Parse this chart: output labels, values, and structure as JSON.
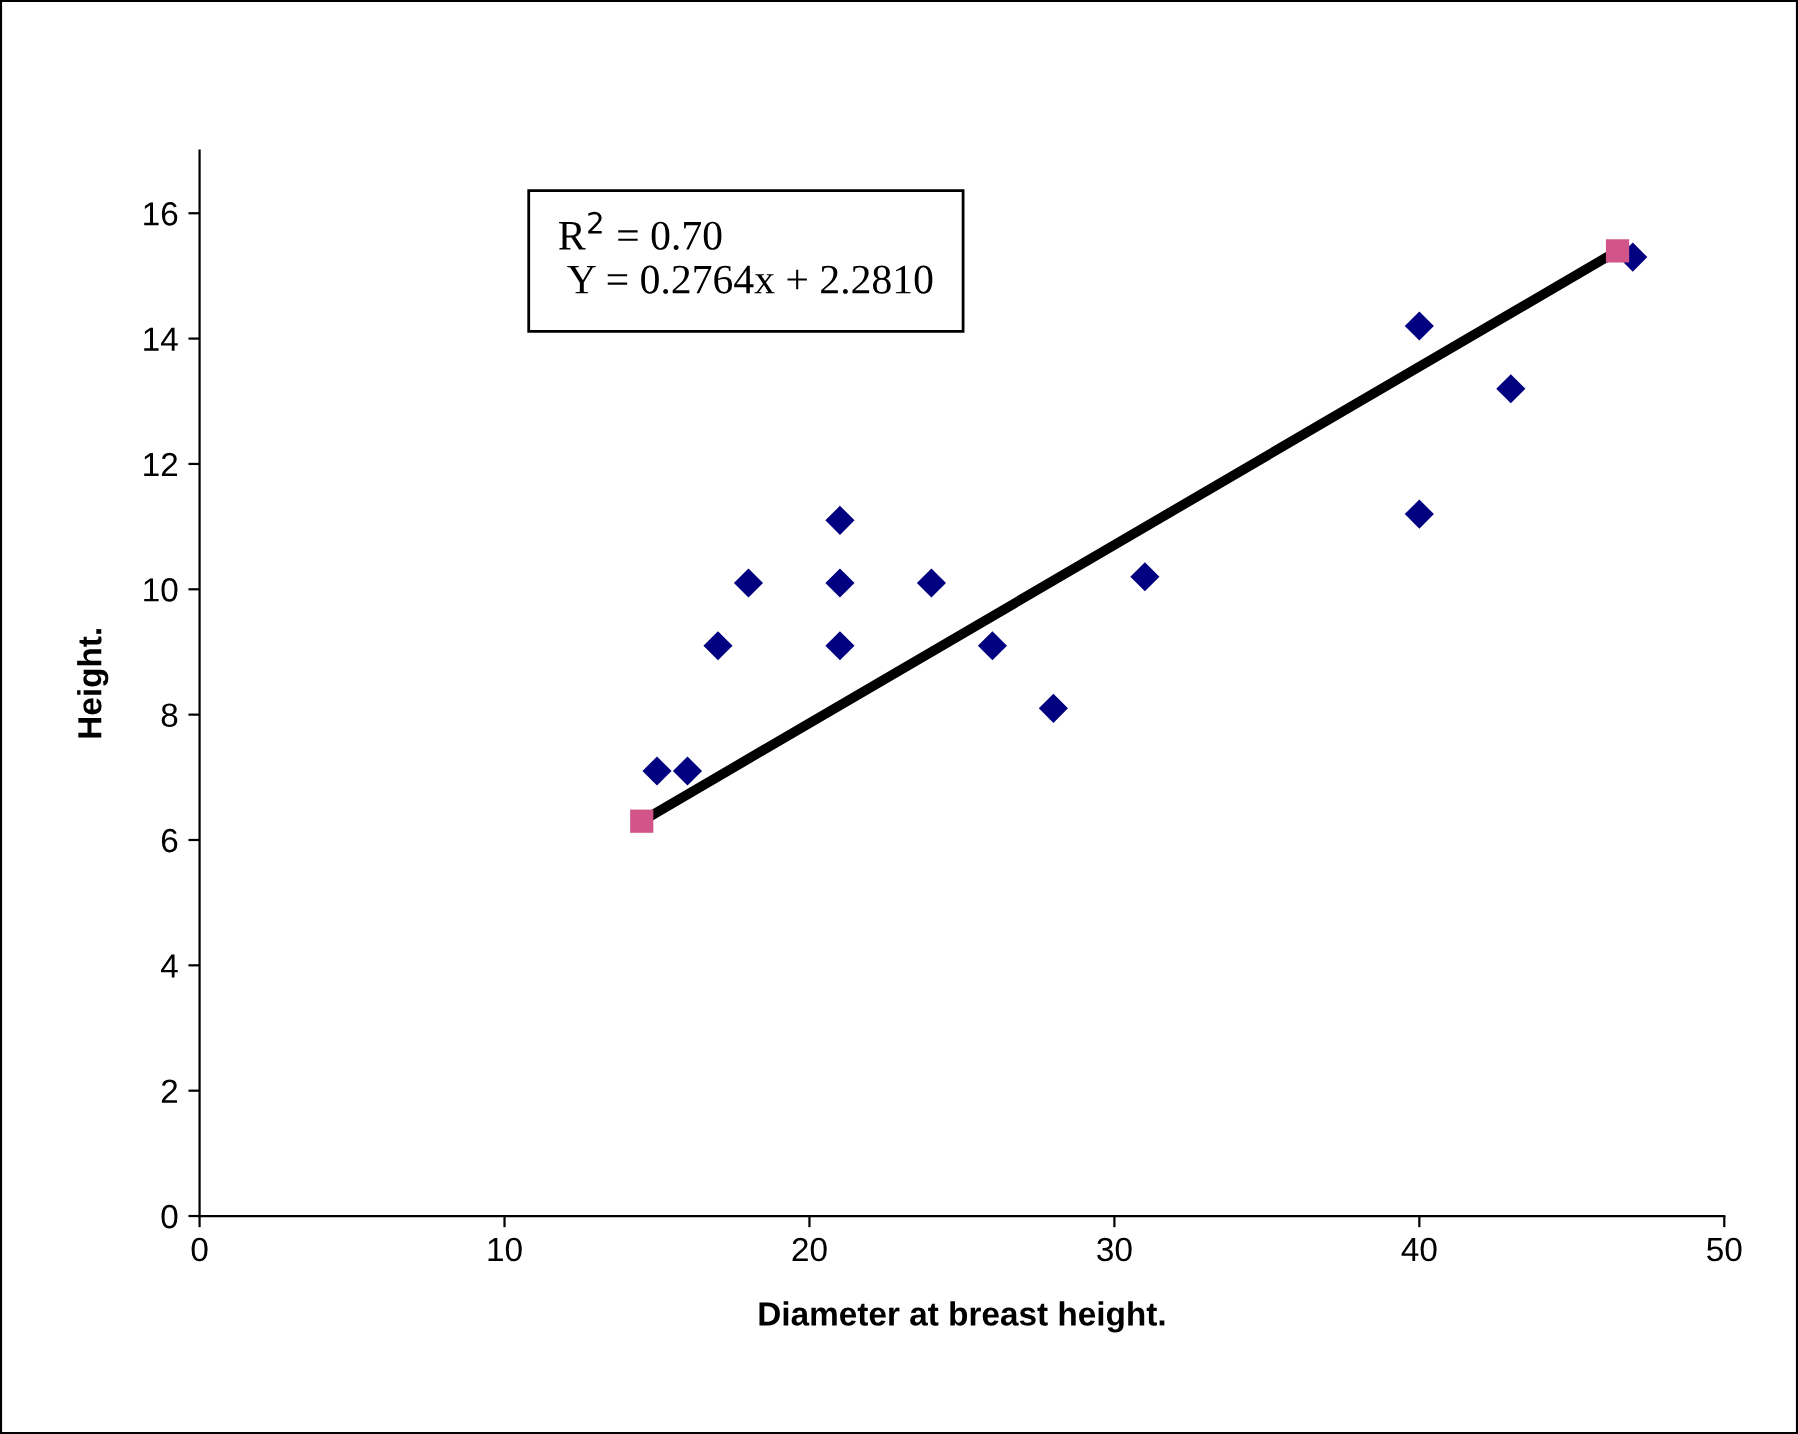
{
  "chart_data": {
    "type": "scatter",
    "xlabel": "Diameter at breast height.",
    "ylabel": "Height.",
    "xlim": [
      0,
      50
    ],
    "xticks": [
      0,
      10,
      20,
      30,
      40,
      50
    ],
    "ylim": [
      0,
      17
    ],
    "yticks": [
      0,
      2,
      4,
      6,
      8,
      10,
      12,
      14,
      16
    ],
    "grid": false,
    "legend": false,
    "annotations": [
      "R$^{2}$ = 0.70\n Y = 0.2764x + 2.2810"
    ],
    "series": [
      {
        "marker": "diamond",
        "color": "#000080",
        "x": [
          15,
          16,
          17,
          18,
          21,
          21,
          21,
          24,
          26,
          28,
          31,
          40,
          40,
          43,
          47
        ],
        "values": [
          7.1,
          7.1,
          9.1,
          10.1,
          11.1,
          10.1,
          9.1,
          10.1,
          9.1,
          8.1,
          10.2,
          14.2,
          11.2,
          13.2,
          15.3
        ]
      },
      {
        "type": "line",
        "marker": "none",
        "color": "#000000",
        "x": [
          14.5,
          46.5
        ],
        "values": [
          6.3,
          15.4
        ]
      },
      {
        "type": "scatter",
        "marker": "square",
        "color": "#d2558a",
        "x": [
          14.5,
          46.5
        ],
        "values": [
          6.3,
          15.4
        ]
      }
    ]
  }
}
